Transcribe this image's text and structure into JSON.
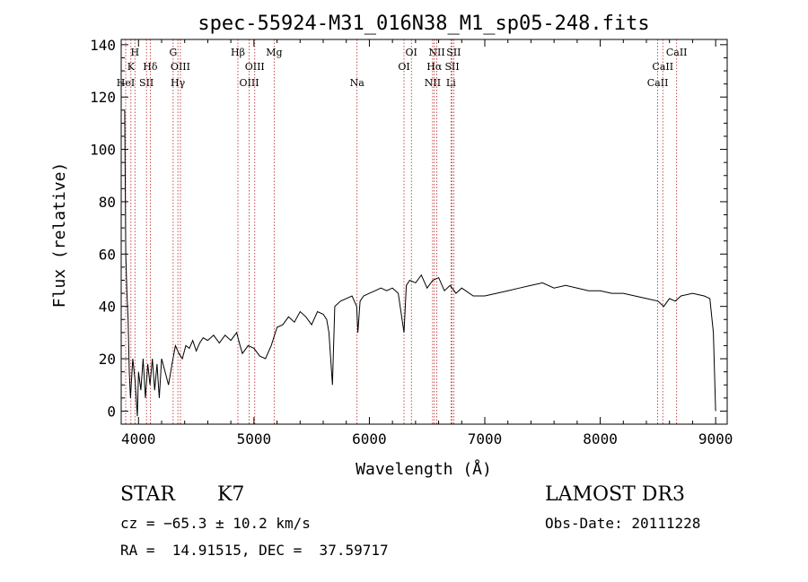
{
  "chart_data": {
    "type": "line",
    "title": "spec-55924-M31_016N38_M1_sp05-248.fits",
    "xlabel": "Wavelength (Å)",
    "ylabel": "Flux (relative)",
    "xlim": [
      3850,
      9100
    ],
    "ylim": [
      -5,
      142
    ],
    "xticks": [
      4000,
      5000,
      6000,
      7000,
      8000,
      9000
    ],
    "yticks": [
      0,
      20,
      40,
      60,
      80,
      100,
      120,
      140
    ],
    "xtick_labels": [
      "4000",
      "5000",
      "6000",
      "7000",
      "8000",
      "9000"
    ],
    "ytick_labels": [
      "0",
      "20",
      "40",
      "60",
      "80",
      "100",
      "120",
      "140"
    ],
    "line_color": "#000000",
    "marker_color": "#b22222",
    "series": [
      {
        "x": [
          3880,
          3890,
          3900,
          3910,
          3920,
          3930,
          3950,
          3970,
          3990,
          4000,
          4020,
          4040,
          4060,
          4080,
          4100,
          4120,
          4140,
          4160,
          4180,
          4200,
          4230,
          4260,
          4290,
          4320,
          4350,
          4380,
          4410,
          4440,
          4470,
          4500,
          4530,
          4560,
          4600,
          4650,
          4700,
          4750,
          4800,
          4850,
          4880,
          4900,
          4950,
          5000,
          5050,
          5100,
          5150,
          5200,
          5250,
          5300,
          5350,
          5400,
          5450,
          5500,
          5550,
          5600,
          5630,
          5650,
          5680,
          5700,
          5750,
          5800,
          5850,
          5890,
          5900,
          5920,
          5950,
          6000,
          6050,
          6100,
          6150,
          6200,
          6250,
          6300,
          6320,
          6350,
          6400,
          6450,
          6500,
          6550,
          6600,
          6650,
          6700,
          6750,
          6800,
          6900,
          7000,
          7100,
          7200,
          7300,
          7400,
          7500,
          7600,
          7700,
          7800,
          7900,
          8000,
          8100,
          8200,
          8300,
          8400,
          8500,
          8550,
          8600,
          8650,
          8700,
          8800,
          8900,
          8950,
          8980,
          9000
        ],
        "y": [
          115,
          60,
          45,
          35,
          15,
          5,
          20,
          12,
          -2,
          15,
          8,
          20,
          5,
          18,
          10,
          20,
          8,
          18,
          5,
          20,
          15,
          10,
          18,
          25,
          22,
          20,
          25,
          24,
          27,
          23,
          26,
          28,
          27,
          29,
          26,
          29,
          27,
          30,
          25,
          22,
          25,
          24,
          21,
          20,
          25,
          32,
          33,
          36,
          34,
          38,
          36,
          33,
          38,
          37,
          35,
          30,
          10,
          40,
          42,
          43,
          44,
          40,
          30,
          42,
          44,
          45,
          46,
          47,
          46,
          47,
          45,
          30,
          48,
          50,
          49,
          52,
          47,
          50,
          51,
          46,
          48,
          45,
          47,
          44,
          44,
          45,
          46,
          47,
          48,
          49,
          47,
          48,
          47,
          46,
          46,
          45,
          45,
          44,
          43,
          42,
          40,
          43,
          42,
          44,
          45,
          44,
          43,
          30,
          0
        ]
      }
    ],
    "lines": [
      {
        "wl": 3889,
        "label": "HeI",
        "row": 3
      },
      {
        "wl": 3934,
        "label": "K",
        "row": 2
      },
      {
        "wl": 3969,
        "label": "H",
        "row": 1
      },
      {
        "wl": 4069,
        "label": "SII",
        "row": 3
      },
      {
        "wl": 4102,
        "label": "Hδ",
        "row": 2
      },
      {
        "wl": 4300,
        "label": "G",
        "row": 1
      },
      {
        "wl": 4341,
        "label": "Hγ",
        "row": 3
      },
      {
        "wl": 4363,
        "label": "OIII",
        "row": 2
      },
      {
        "wl": 4861,
        "label": "Hβ",
        "row": 1
      },
      {
        "wl": 4959,
        "label": "OIII",
        "row": 3
      },
      {
        "wl": 5007,
        "label": "OIII",
        "row": 2
      },
      {
        "wl": 5175,
        "label": "Mg",
        "row": 1
      },
      {
        "wl": 5893,
        "label": "Na",
        "row": 3
      },
      {
        "wl": 6300,
        "label": "OI",
        "row": 2
      },
      {
        "wl": 6364,
        "label": "OI",
        "row": 1
      },
      {
        "wl": 6548,
        "label": "NII",
        "row": 3
      },
      {
        "wl": 6563,
        "label": "Hα",
        "row": 2
      },
      {
        "wl": 6584,
        "label": "NII",
        "row": 1
      },
      {
        "wl": 6707,
        "label": "Li",
        "row": 3
      },
      {
        "wl": 6717,
        "label": "SII",
        "row": 2
      },
      {
        "wl": 6731,
        "label": "SII",
        "row": 1
      },
      {
        "wl": 8498,
        "label": "CaII",
        "row": 3
      },
      {
        "wl": 8542,
        "label": "CaII",
        "row": 2
      },
      {
        "wl": 8662,
        "label": "CaII",
        "row": 1
      }
    ]
  },
  "info": {
    "class_label": "STAR",
    "subclass": "K7",
    "survey": "LAMOST DR3",
    "cz": "cz = −65.3 ± 10.2 km/s",
    "obs_date": "Obs-Date: 20111228",
    "coords": "RA =  14.91515, DEC =  37.59717"
  }
}
